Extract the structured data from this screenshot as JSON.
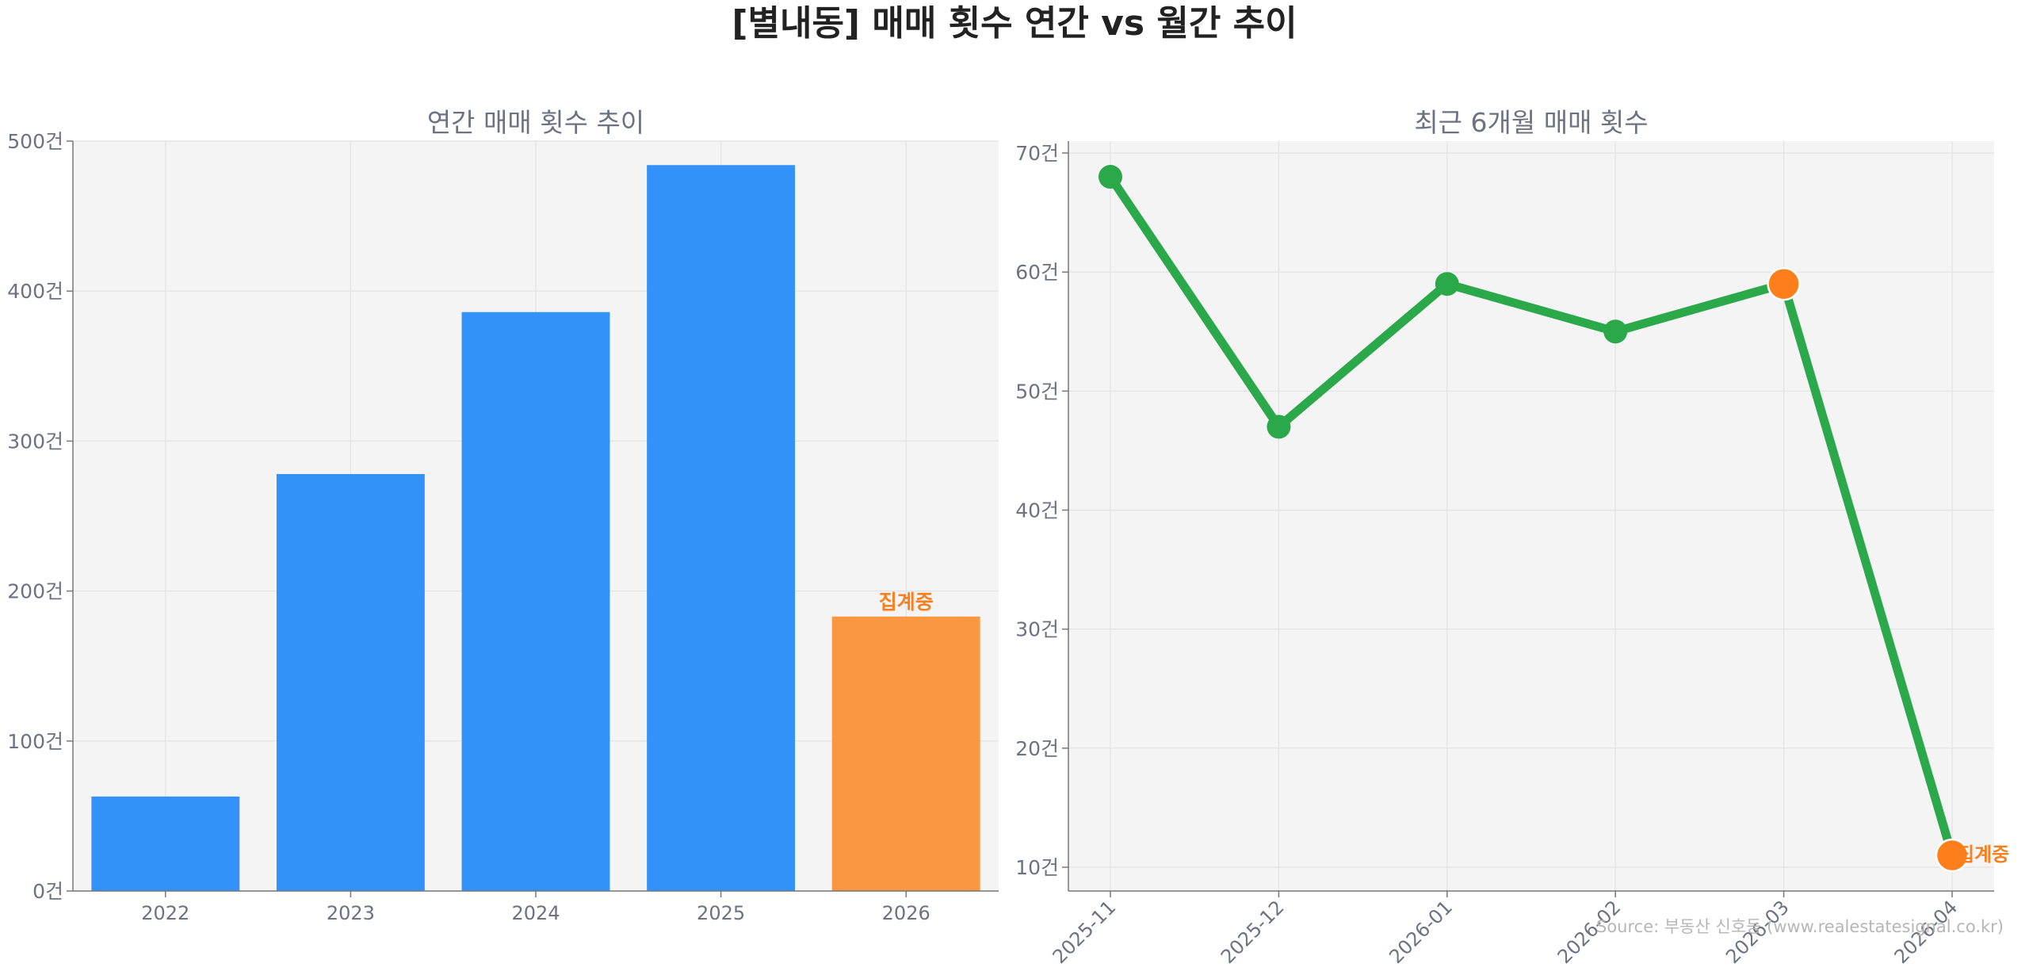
{
  "page_title": "[별내동] 매매 횟수 연간 vs 월간 추이",
  "source_text": "Source: 부동산 신호등 (www.realestatesignal.co.kr)",
  "colors": {
    "bar": "#3292fa",
    "bar_partial": "#f99742",
    "line": "#2ba84a",
    "highlight": "#fd7f1c",
    "annotation": "#f77f1f",
    "panel_bg": "#f4f4f4"
  },
  "chart_data": [
    {
      "type": "bar",
      "title": "연간 매매 횟수 추이",
      "categories": [
        "2022",
        "2023",
        "2024",
        "2025",
        "2026"
      ],
      "values": [
        63,
        278,
        386,
        484,
        183
      ],
      "partial_index": 4,
      "annotation": "집계중",
      "ylim": [
        0,
        500
      ],
      "yticks": [
        0,
        100,
        200,
        300,
        400,
        500
      ],
      "tick_suffix": "건",
      "grid": true
    },
    {
      "type": "line",
      "title": "최근 6개월 매매 횟수",
      "categories": [
        "2025-11",
        "2025-12",
        "2026-01",
        "2026-02",
        "2026-03",
        "2026-04"
      ],
      "values": [
        68,
        47,
        59,
        55,
        59,
        11
      ],
      "highlight_indices": [
        4,
        5
      ],
      "annotation": "집계중",
      "annotation_index": 5,
      "ylim": [
        8,
        71
      ],
      "yticks": [
        10,
        20,
        30,
        40,
        50,
        60,
        70
      ],
      "tick_suffix": "건",
      "grid": true
    }
  ]
}
